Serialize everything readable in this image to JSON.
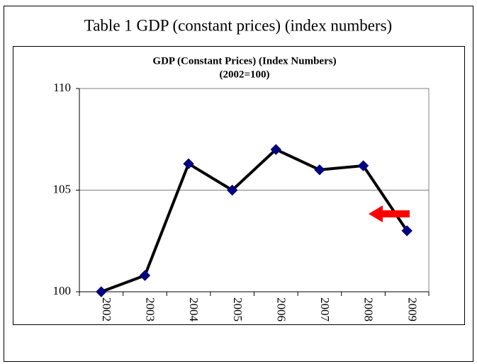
{
  "caption": "Table 1  GDP (constant prices) (index numbers)",
  "chart_data": {
    "type": "line",
    "title": "GDP (Constant  Prices) (Index Numbers)",
    "subtitle": "(2002=100)",
    "categories": [
      "2002",
      "2003",
      "2004",
      "2005",
      "2006",
      "2007",
      "2008",
      "2009"
    ],
    "series": [
      {
        "name": "GDP",
        "color": "#000000",
        "marker_color": "#000080",
        "values": [
          100,
          100.8,
          106.3,
          105,
          107,
          106,
          106.2,
          103
        ]
      }
    ],
    "ylim": [
      100,
      110
    ],
    "yticks": [
      100,
      105,
      110
    ],
    "grid": true
  }
}
